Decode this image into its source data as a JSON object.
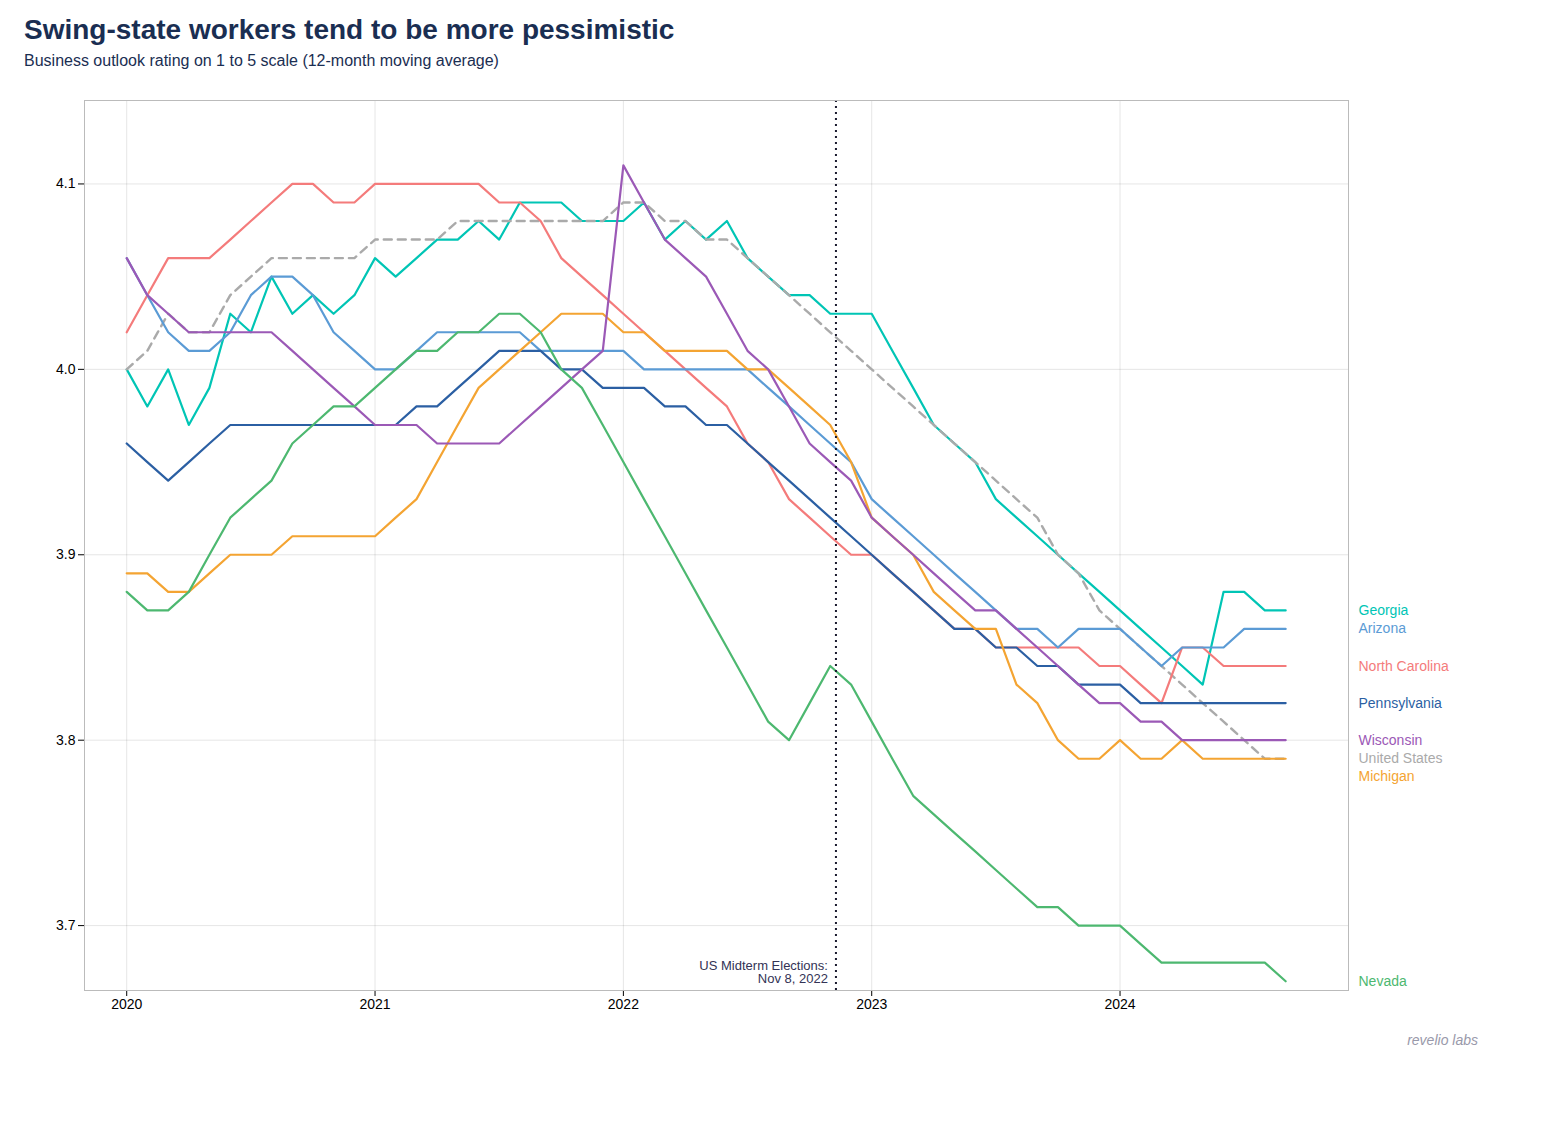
{
  "chart_data": {
    "type": "line",
    "title": "Swing-state workers tend to be more pessimistic",
    "subtitle": "Business outlook rating on 1 to 5 scale (12-month moving average)",
    "caption": "revelio labs",
    "annotations": [
      {
        "text": "US Midterm Elections:\nNov 8, 2022",
        "x": 2022.856
      }
    ],
    "xlim": [
      2019.83,
      2024.92
    ],
    "xticks": [
      2020,
      2021,
      2022,
      2023,
      2024
    ],
    "ylim": [
      3.665,
      4.145
    ],
    "yticks": [
      3.7,
      3.8,
      3.9,
      {
        "value": 4.0,
        "label": "4.0"
      },
      4.1
    ],
    "grid": true,
    "x": [
      2020.0,
      2020.083,
      2020.167,
      2020.25,
      2020.333,
      2020.417,
      2020.5,
      2020.583,
      2020.667,
      2020.75,
      2020.833,
      2020.917,
      2021.0,
      2021.083,
      2021.167,
      2021.25,
      2021.333,
      2021.417,
      2021.5,
      2021.583,
      2021.667,
      2021.75,
      2021.833,
      2021.917,
      2022.0,
      2022.083,
      2022.167,
      2022.25,
      2022.333,
      2022.417,
      2022.5,
      2022.583,
      2022.667,
      2022.75,
      2022.833,
      2022.917,
      2023.0,
      2023.083,
      2023.167,
      2023.25,
      2023.333,
      2023.417,
      2023.5,
      2023.583,
      2023.667,
      2023.75,
      2023.833,
      2023.917,
      2024.0,
      2024.083,
      2024.167,
      2024.25,
      2024.333,
      2024.417,
      2024.5,
      2024.583,
      2024.667
    ],
    "series": [
      {
        "name": "Georgia",
        "color": "#00c5b5",
        "line_style": "solid",
        "values": [
          4.0,
          3.98,
          4.0,
          3.97,
          3.99,
          4.03,
          4.02,
          4.05,
          4.03,
          4.04,
          4.03,
          4.04,
          4.06,
          4.05,
          4.06,
          4.07,
          4.07,
          4.08,
          4.07,
          4.09,
          4.09,
          4.09,
          4.08,
          4.08,
          4.08,
          4.09,
          4.07,
          4.08,
          4.07,
          4.08,
          4.06,
          4.05,
          4.04,
          4.04,
          4.03,
          4.03,
          4.03,
          4.01,
          3.99,
          3.97,
          3.96,
          3.95,
          3.93,
          3.92,
          3.91,
          3.9,
          3.89,
          3.88,
          3.87,
          3.86,
          3.85,
          3.84,
          3.83,
          3.88,
          3.88,
          3.87,
          3.87
        ]
      },
      {
        "name": "United States",
        "color": "#aaaaaa",
        "line_style": "dashed",
        "values": [
          4.0,
          4.01,
          4.03,
          4.02,
          4.02,
          4.04,
          4.05,
          4.06,
          4.06,
          4.06,
          4.06,
          4.06,
          4.07,
          4.07,
          4.07,
          4.07,
          4.08,
          4.08,
          4.08,
          4.08,
          4.08,
          4.08,
          4.08,
          4.08,
          4.09,
          4.09,
          4.08,
          4.08,
          4.07,
          4.07,
          4.06,
          4.05,
          4.04,
          4.03,
          4.02,
          4.01,
          4.0,
          3.99,
          3.98,
          3.97,
          3.96,
          3.95,
          3.94,
          3.93,
          3.92,
          3.9,
          3.89,
          3.87,
          3.86,
          3.85,
          3.84,
          3.83,
          3.82,
          3.81,
          3.8,
          3.79,
          3.79
        ]
      },
      {
        "name": "North Carolina",
        "color": "#f47b7b",
        "line_style": "solid",
        "values": [
          4.02,
          4.04,
          4.06,
          4.06,
          4.06,
          4.07,
          4.08,
          4.09,
          4.1,
          4.1,
          4.09,
          4.09,
          4.1,
          4.1,
          4.1,
          4.1,
          4.1,
          4.1,
          4.09,
          4.09,
          4.08,
          4.06,
          4.05,
          4.04,
          4.03,
          4.02,
          4.01,
          4.0,
          3.99,
          3.98,
          3.96,
          3.95,
          3.93,
          3.92,
          3.91,
          3.9,
          3.9,
          3.89,
          3.88,
          3.87,
          3.86,
          3.86,
          3.85,
          3.85,
          3.85,
          3.85,
          3.85,
          3.84,
          3.84,
          3.83,
          3.82,
          3.85,
          3.85,
          3.84,
          3.84,
          3.84,
          3.84
        ]
      },
      {
        "name": "Arizona",
        "color": "#5b9bd5",
        "line_style": "solid",
        "values": [
          4.06,
          4.04,
          4.02,
          4.01,
          4.01,
          4.02,
          4.04,
          4.05,
          4.05,
          4.04,
          4.02,
          4.01,
          4.0,
          4.0,
          4.01,
          4.02,
          4.02,
          4.02,
          4.02,
          4.02,
          4.01,
          4.01,
          4.01,
          4.01,
          4.01,
          4.0,
          4.0,
          4.0,
          4.0,
          4.0,
          4.0,
          3.99,
          3.98,
          3.97,
          3.96,
          3.95,
          3.93,
          3.92,
          3.91,
          3.9,
          3.89,
          3.88,
          3.87,
          3.86,
          3.86,
          3.85,
          3.86,
          3.86,
          3.86,
          3.85,
          3.84,
          3.85,
          3.85,
          3.85,
          3.86,
          3.86,
          3.86
        ]
      },
      {
        "name": "Pennsylvania",
        "color": "#2b5fa3",
        "line_style": "solid",
        "values": [
          3.96,
          3.95,
          3.94,
          3.95,
          3.96,
          3.97,
          3.97,
          3.97,
          3.97,
          3.97,
          3.97,
          3.97,
          3.97,
          3.97,
          3.98,
          3.98,
          3.99,
          4.0,
          4.01,
          4.01,
          4.01,
          4.0,
          4.0,
          3.99,
          3.99,
          3.99,
          3.98,
          3.98,
          3.97,
          3.97,
          3.96,
          3.95,
          3.94,
          3.93,
          3.92,
          3.91,
          3.9,
          3.89,
          3.88,
          3.87,
          3.86,
          3.86,
          3.85,
          3.85,
          3.84,
          3.84,
          3.83,
          3.83,
          3.83,
          3.82,
          3.82,
          3.82,
          3.82,
          3.82,
          3.82,
          3.82,
          3.82
        ]
      },
      {
        "name": "Michigan",
        "color": "#f4a432",
        "line_style": "solid",
        "values": [
          3.89,
          3.89,
          3.88,
          3.88,
          3.89,
          3.9,
          3.9,
          3.9,
          3.91,
          3.91,
          3.91,
          3.91,
          3.91,
          3.92,
          3.93,
          3.95,
          3.97,
          3.99,
          4.0,
          4.01,
          4.02,
          4.03,
          4.03,
          4.03,
          4.02,
          4.02,
          4.01,
          4.01,
          4.01,
          4.01,
          4.0,
          4.0,
          3.99,
          3.98,
          3.97,
          3.95,
          3.92,
          3.91,
          3.9,
          3.88,
          3.87,
          3.86,
          3.86,
          3.83,
          3.82,
          3.8,
          3.79,
          3.79,
          3.8,
          3.79,
          3.79,
          3.8,
          3.79,
          3.79,
          3.79,
          3.79,
          3.79
        ]
      },
      {
        "name": "Wisconsin",
        "color": "#9b59b6",
        "line_style": "solid",
        "values": [
          4.06,
          4.04,
          4.03,
          4.02,
          4.02,
          4.02,
          4.02,
          4.02,
          4.01,
          4.0,
          3.99,
          3.98,
          3.97,
          3.97,
          3.97,
          3.96,
          3.96,
          3.96,
          3.96,
          3.97,
          3.98,
          3.99,
          4.0,
          4.01,
          4.11,
          4.09,
          4.07,
          4.06,
          4.05,
          4.03,
          4.01,
          4.0,
          3.98,
          3.96,
          3.95,
          3.94,
          3.92,
          3.91,
          3.9,
          3.89,
          3.88,
          3.87,
          3.87,
          3.86,
          3.85,
          3.84,
          3.83,
          3.82,
          3.82,
          3.81,
          3.81,
          3.8,
          3.8,
          3.8,
          3.8,
          3.8,
          3.8
        ]
      },
      {
        "name": "Nevada",
        "color": "#4db870",
        "line_style": "solid",
        "values": [
          3.88,
          3.87,
          3.87,
          3.88,
          3.9,
          3.92,
          3.93,
          3.94,
          3.96,
          3.97,
          3.98,
          3.98,
          3.99,
          4.0,
          4.01,
          4.01,
          4.02,
          4.02,
          4.03,
          4.03,
          4.02,
          4.0,
          3.99,
          3.97,
          3.95,
          3.93,
          3.91,
          3.89,
          3.87,
          3.85,
          3.83,
          3.81,
          3.8,
          3.82,
          3.84,
          3.83,
          3.81,
          3.79,
          3.77,
          3.76,
          3.75,
          3.74,
          3.73,
          3.72,
          3.71,
          3.71,
          3.7,
          3.7,
          3.7,
          3.69,
          3.68,
          3.68,
          3.68,
          3.68,
          3.68,
          3.68,
          3.67
        ]
      }
    ]
  }
}
